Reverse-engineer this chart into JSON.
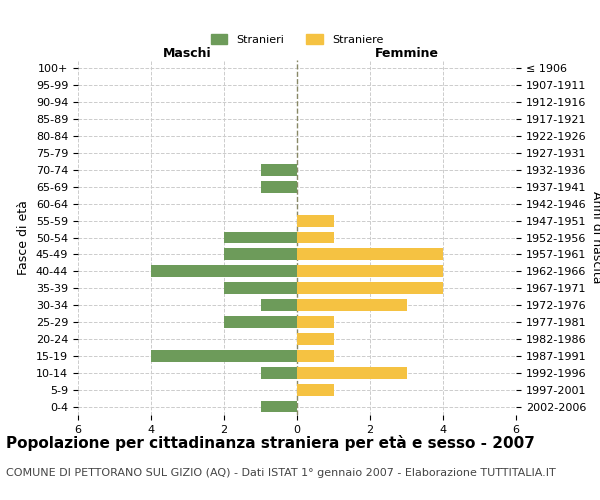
{
  "age_groups": [
    "0-4",
    "5-9",
    "10-14",
    "15-19",
    "20-24",
    "25-29",
    "30-34",
    "35-39",
    "40-44",
    "45-49",
    "50-54",
    "55-59",
    "60-64",
    "65-69",
    "70-74",
    "75-79",
    "80-84",
    "85-89",
    "90-94",
    "95-99",
    "100+"
  ],
  "birth_years": [
    "2002-2006",
    "1997-2001",
    "1992-1996",
    "1987-1991",
    "1982-1986",
    "1977-1981",
    "1972-1976",
    "1967-1971",
    "1962-1966",
    "1957-1961",
    "1952-1956",
    "1947-1951",
    "1942-1946",
    "1937-1941",
    "1932-1936",
    "1927-1931",
    "1922-1926",
    "1917-1921",
    "1912-1916",
    "1907-1911",
    "≤ 1906"
  ],
  "maschi": [
    1,
    0,
    1,
    4,
    0,
    2,
    1,
    2,
    4,
    2,
    2,
    0,
    0,
    1,
    1,
    0,
    0,
    0,
    0,
    0,
    0
  ],
  "femmine": [
    0,
    1,
    3,
    1,
    1,
    1,
    3,
    4,
    4,
    4,
    1,
    1,
    0,
    0,
    0,
    0,
    0,
    0,
    0,
    0,
    0
  ],
  "maschi_color": "#6d9b5a",
  "femmine_color": "#f5c242",
  "background_color": "#ffffff",
  "grid_color": "#cccccc",
  "center_line_color": "#888866",
  "xlim": 6,
  "title": "Popolazione per cittadinanza straniera per età e sesso - 2007",
  "subtitle": "COMUNE DI PETTORANO SUL GIZIO (AQ) - Dati ISTAT 1° gennaio 2007 - Elaborazione TUTTITALIA.IT",
  "ylabel_left": "Fasce di età",
  "ylabel_right": "Anni di nascita",
  "xlabel_maschi": "Maschi",
  "xlabel_femmine": "Femmine",
  "legend_maschi": "Stranieri",
  "legend_femmine": "Straniere",
  "title_fontsize": 11,
  "subtitle_fontsize": 8,
  "tick_fontsize": 8,
  "label_fontsize": 9
}
